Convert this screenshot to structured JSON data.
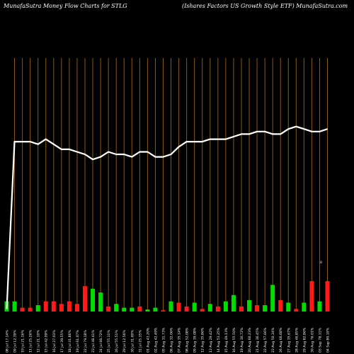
{
  "header": {
    "left_title": "MunafaSutra  Money Flow  Charts for STLG",
    "right_title": "(Ishares Factors US Growth Style   ETF) MunafaSutra.com"
  },
  "axis_marker": "0",
  "colors": {
    "background": "#000000",
    "grid": "#8a5a12",
    "line": "#ffffff",
    "up": "#00dd00",
    "down": "#ff1a1a"
  },
  "chart_data": {
    "type": "bar+line",
    "ylim_line": [
      0,
      100
    ],
    "ylim_bars": [
      0,
      100
    ],
    "grid": "vertical",
    "categories": [
      "08 Jul 17.14%",
      "09 Jul 12.39%",
      "10 Jul 21.16%",
      "11 Jul 25.26%",
      "12 Jul 21.10%",
      "15 Jul 42.09%",
      "16 Jul 27.03%",
      "17 Jul 39.55%",
      "18 Jul 41.86%",
      "19 Jul 61.07%",
      "22 Jul 79.18%",
      "23 Jul 48.41%",
      "24 Jul 66.72%",
      "25 Jul 55.11%",
      "26 Jul 55.51%",
      "29 Jul 12.56%",
      "30 Jul 31.00%",
      "31 Jul 25.35%",
      "01 Aug 43.20%",
      "02 Aug 42.49%",
      "05 Aug 31.73%",
      "06 Aug 32.06%",
      "07 Aug 35.14%",
      "08 Aug 52.08%",
      "09 Aug 39.08%",
      "12 Aug 35.86%",
      "13 Aug 29.42%",
      "14 Aug 53.25%",
      "15 Aug 49.13%",
      "16 Aug 55.50%",
      "19 Aug 30.72%",
      "20 Aug 60.23%",
      "21 Aug 36.45%",
      "22 Aug 57.66%",
      "23 Aug 50.34%",
      "26 Aug 66.68%",
      "27 Aug 35.67%",
      "28 Aug 46.85%",
      "29 Aug 82.86%",
      "30 Aug 76.01%",
      "03 Sep 78.11%",
      "04 Sep 80.10%"
    ],
    "line": [
      1,
      67,
      67,
      67,
      66,
      68,
      66,
      64,
      64,
      63,
      62,
      60,
      61,
      63,
      62,
      62,
      61,
      63,
      63,
      61,
      61,
      62,
      65,
      67,
      67,
      67,
      68,
      68,
      68,
      69,
      70,
      70,
      71,
      71,
      70,
      70,
      72,
      73,
      72,
      71,
      71,
      72
    ],
    "bar_colors": [
      "green",
      "green",
      "red",
      "red",
      "green",
      "red",
      "red",
      "red",
      "red",
      "red",
      "red",
      "green",
      "green",
      "red",
      "green",
      "green",
      "green",
      "red",
      "green",
      "green",
      "red",
      "green",
      "red",
      "red",
      "green",
      "red",
      "green",
      "red",
      "green",
      "green",
      "red",
      "green",
      "red",
      "green",
      "green",
      "red",
      "green",
      "red",
      "green",
      "red",
      "green",
      "red"
    ],
    "bar_values": [
      4.0,
      4.0,
      1.5,
      1.5,
      2.5,
      4.0,
      4.0,
      3.0,
      4.0,
      3.0,
      10.0,
      9.0,
      7.5,
      2.0,
      3.0,
      1.5,
      1.5,
      2.0,
      0.8,
      1.5,
      0.5,
      4.0,
      3.5,
      2.0,
      3.5,
      1.0,
      3.0,
      2.0,
      4.0,
      6.5,
      2.0,
      4.5,
      2.5,
      2.5,
      10.5,
      4.5,
      3.5,
      1.0,
      3.5,
      12.0,
      4.0,
      12.0
    ]
  }
}
